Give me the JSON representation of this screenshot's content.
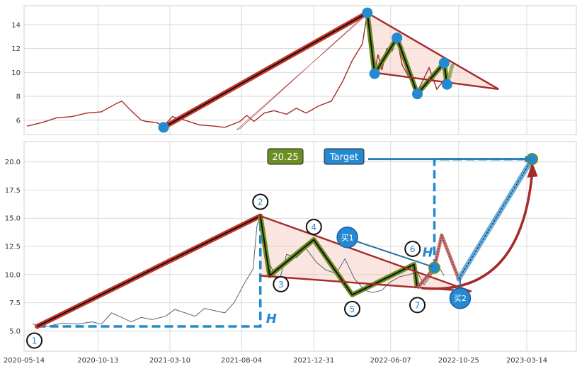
{
  "chart_data": [
    {
      "type": "line",
      "panel": "top",
      "title": "",
      "xlabel": "",
      "ylabel": "",
      "ylim": [
        4.8,
        15.6
      ],
      "yticks": [
        6,
        8,
        10,
        12,
        14
      ],
      "grid": true,
      "series": [
        {
          "color": "#a52a2a",
          "x": [
            "2020-05-20",
            "2020-06-20",
            "2020-07-20",
            "2020-08-20",
            "2020-09-20",
            "2020-10-20",
            "2020-11-20",
            "2020-12-01",
            "2020-12-20",
            "2021-01-10",
            "2021-01-20",
            "2021-02-10",
            "2021-02-25",
            "2021-03-15",
            "2021-04-10",
            "2021-05-10",
            "2021-06-10",
            "2021-07-01",
            "2021-08-01",
            "2021-08-15",
            "2021-08-30",
            "2021-09-20",
            "2021-10-10",
            "2021-11-05",
            "2021-11-25",
            "2021-12-15",
            "2022-01-10",
            "2022-02-05",
            "2022-03-01",
            "2022-03-20",
            "2022-04-10",
            "2022-04-20",
            "2022-04-28",
            "2022-05-05",
            "2022-05-12",
            "2022-05-20",
            "2022-05-30",
            "2022-06-10",
            "2022-06-20",
            "2022-07-01",
            "2022-07-15",
            "2022-08-01",
            "2022-08-12",
            "2022-08-25",
            "2022-09-10",
            "2022-09-25",
            "2022-10-10"
          ],
          "y": [
            5.5,
            5.8,
            6.2,
            6.3,
            6.6,
            6.7,
            7.4,
            7.6,
            6.8,
            6.0,
            5.9,
            5.8,
            5.5,
            6.3,
            6.0,
            5.6,
            5.5,
            5.4,
            5.9,
            6.4,
            5.9,
            6.6,
            6.8,
            6.5,
            7.0,
            6.6,
            7.2,
            7.6,
            9.3,
            11.0,
            12.4,
            15.0,
            12.4,
            10.0,
            11.5,
            10.2,
            12.0,
            11.8,
            12.8,
            10.6,
            9.6,
            8.4,
            9.3,
            10.4,
            8.6,
            9.4,
            9.7
          ]
        }
      ],
      "pattern_points": [
        {
          "x": "2021-02-25",
          "y": 5.4
        },
        {
          "x": "2022-04-20",
          "y": 15.0
        },
        {
          "x": "2022-05-05",
          "y": 9.9
        },
        {
          "x": "2022-06-20",
          "y": 12.9
        },
        {
          "x": "2022-08-01",
          "y": 8.2
        },
        {
          "x": "2022-09-25",
          "y": 10.8
        },
        {
          "x": "2022-10-01",
          "y": 9.0
        }
      ],
      "trend_lines": [
        {
          "from": {
            "x": "2022-04-20",
            "y": 15.0
          },
          "to": {
            "x": "2023-01-15",
            "y": 8.6
          }
        },
        {
          "from": {
            "x": "2022-05-01",
            "y": 10.0
          },
          "to": {
            "x": "2023-01-15",
            "y": 8.6
          }
        }
      ],
      "projection": [
        {
          "x": "2022-10-01",
          "y": 9.0
        },
        {
          "x": "2022-10-12",
          "y": 10.6
        }
      ]
    },
    {
      "type": "line",
      "panel": "bottom",
      "title": "",
      "xlabel": "",
      "ylabel": "",
      "ylim": [
        3.2,
        21.8
      ],
      "yticks": [
        5.0,
        7.5,
        10.0,
        12.5,
        15.0,
        17.5,
        20.0
      ],
      "ytick_labels": [
        "5.0",
        "7.5",
        "10.0",
        "12.5",
        "15.0",
        "17.5",
        "20.0"
      ],
      "xlim": [
        "2020-05-14",
        "2023-04-23"
      ],
      "xticks": [
        "2020-05-14",
        "2020-10-13",
        "2021-03-10",
        "2021-08-04",
        "2021-12-31",
        "2022-06-07",
        "2022-10-25",
        "2023-03-14"
      ],
      "grid": true,
      "series": [
        {
          "color": "#5b6270",
          "x": [
            "2020-06-01",
            "2020-07-01",
            "2020-08-01",
            "2020-09-01",
            "2020-10-01",
            "2020-10-20",
            "2020-11-10",
            "2020-12-01",
            "2020-12-20",
            "2021-01-10",
            "2021-02-01",
            "2021-03-01",
            "2021-03-20",
            "2021-04-10",
            "2021-05-01",
            "2021-05-20",
            "2021-06-10",
            "2021-07-01",
            "2021-07-20",
            "2021-08-10",
            "2021-08-28",
            "2021-09-05",
            "2021-09-12",
            "2021-09-20",
            "2021-10-05",
            "2021-10-20",
            "2021-11-05",
            "2021-11-25",
            "2021-12-15",
            "2022-01-05",
            "2022-01-25",
            "2022-02-15",
            "2022-03-05",
            "2022-03-25",
            "2022-04-15",
            "2022-05-01",
            "2022-05-20",
            "2022-06-05",
            "2022-06-25",
            "2022-07-15",
            "2022-08-01",
            "2022-08-15",
            "2022-09-01",
            "2022-09-15",
            "2022-09-25"
          ],
          "y": [
            5.6,
            5.4,
            5.7,
            5.6,
            5.8,
            5.6,
            6.6,
            6.2,
            5.8,
            6.2,
            6.0,
            6.3,
            6.9,
            6.6,
            6.3,
            7.0,
            6.8,
            6.6,
            7.5,
            9.2,
            10.5,
            14.3,
            15.3,
            12.0,
            10.6,
            9.3,
            11.8,
            11.5,
            12.3,
            11.1,
            10.4,
            10.1,
            11.4,
            9.6,
            8.6,
            8.4,
            8.6,
            9.3,
            9.8,
            10.0,
            10.2,
            9.1,
            10.1,
            10.6,
            9.9
          ]
        }
      ],
      "pattern_points": [
        {
          "label": "1",
          "x": "2020-06-10",
          "y": 5.4
        },
        {
          "label": "2",
          "x": "2021-09-12",
          "y": 15.2
        },
        {
          "label": "3",
          "x": "2021-10-01",
          "y": 9.9
        },
        {
          "label": "4",
          "x": "2021-12-31",
          "y": 13.1
        },
        {
          "label": "5",
          "x": "2022-03-20",
          "y": 8.2
        },
        {
          "label": "6",
          "x": "2022-07-25",
          "y": 10.9
        },
        {
          "label": "7",
          "x": "2022-08-01",
          "y": 8.8
        }
      ],
      "trend_lines": [
        {
          "from": {
            "x": "2021-09-12",
            "y": 15.2
          },
          "to": {
            "x": "2022-11-20",
            "y": 8.5
          }
        },
        {
          "from": {
            "x": "2021-09-12",
            "y": 9.9
          },
          "to": {
            "x": "2022-11-20",
            "y": 8.5
          }
        }
      ],
      "targets": {
        "value_label": "20.25",
        "target_label": "Target",
        "target_value": 20.25
      },
      "buy_points": [
        {
          "label": "买1",
          "x": "2022-08-25",
          "y": 10.6
        },
        {
          "label": "买2",
          "x": "2022-11-05",
          "y": 10.6
        }
      ],
      "height_markers": [
        "H",
        "H"
      ]
    }
  ]
}
